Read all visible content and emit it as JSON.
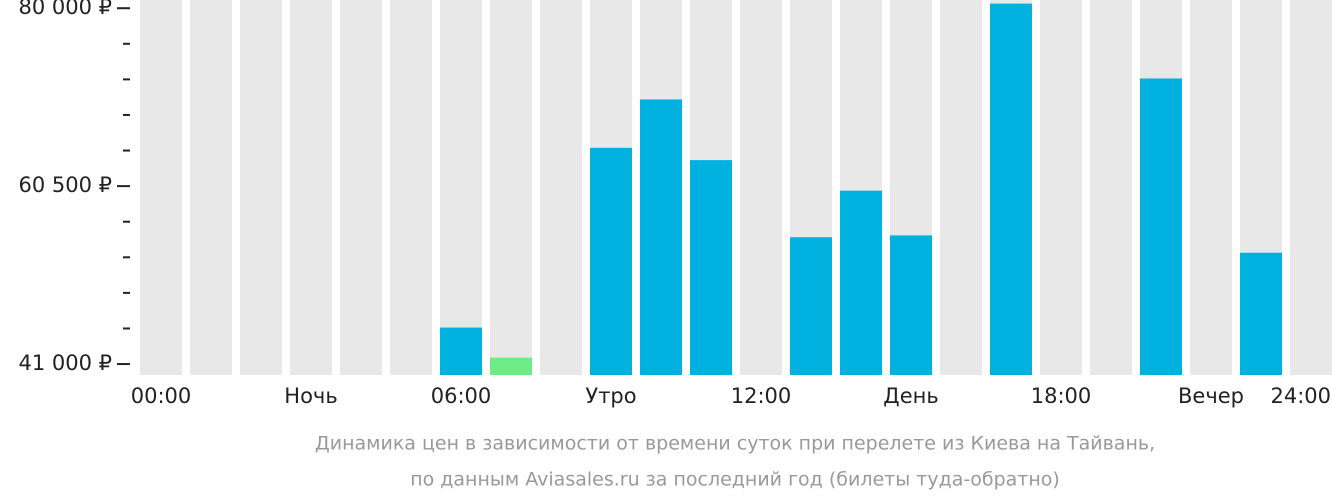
{
  "chart_data": {
    "type": "bar",
    "values": [
      null,
      null,
      null,
      null,
      null,
      null,
      45000,
      41700,
      null,
      64700,
      70000,
      63350,
      null,
      54900,
      60000,
      55100,
      null,
      80500,
      null,
      null,
      72300,
      null,
      53200,
      null
    ],
    "colors": [
      "#00b0de",
      "#00b0de",
      "#00b0de",
      "#00b0de",
      "#00b0de",
      "#00b0de",
      "#00b0de",
      "#6deb87",
      "#00b0de",
      "#00b0de",
      "#00b0de",
      "#00b0de",
      "#00b0de",
      "#00b0de",
      "#00b0de",
      "#00b0de",
      "#00b0de",
      "#00b0de",
      "#00b0de",
      "#00b0de",
      "#00b0de",
      "#00b0de",
      "#00b0de",
      "#00b0de"
    ],
    "background_color": "#e8e8e8",
    "ylim": [
      39800,
      80900
    ],
    "yticks": [
      {
        "value": 41000,
        "label": "41 000 ₽"
      },
      {
        "value": 60500,
        "label": "60 500 ₽"
      },
      {
        "value": 80000,
        "label": "80 000 ₽"
      }
    ],
    "yminorticks": [
      44900,
      48800,
      52700,
      56600,
      64400,
      68300,
      72200,
      76100
    ],
    "xtick_labels": [
      "00:00",
      "Ночь",
      "06:00",
      "Утро",
      "12:00",
      "День",
      "18:00",
      "Вечер",
      "24:00"
    ],
    "caption": [
      "Динамика цен в зависимости от времени суток при перелете из Киева на Тайвань,",
      "по данным Aviasales.ru за последний год (билеты туда-обратно)"
    ]
  }
}
